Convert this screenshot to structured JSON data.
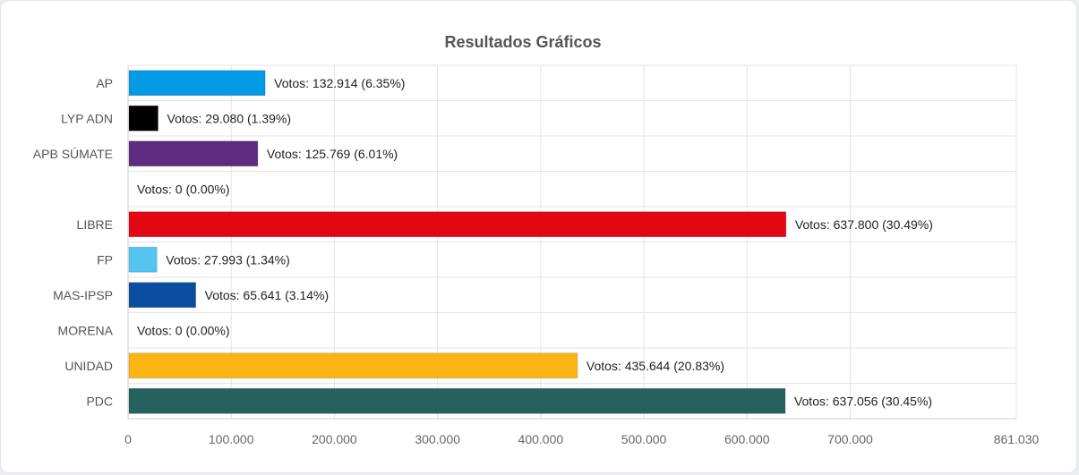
{
  "chart_data": {
    "type": "bar",
    "orientation": "horizontal",
    "title": "Resultados Gráficos",
    "xlim": [
      0,
      861030
    ],
    "x_ticks": [
      {
        "value": 0,
        "label": "0"
      },
      {
        "value": 100000,
        "label": "100.000"
      },
      {
        "value": 200000,
        "label": "200.000"
      },
      {
        "value": 300000,
        "label": "300.000"
      },
      {
        "value": 400000,
        "label": "400.000"
      },
      {
        "value": 500000,
        "label": "500.000"
      },
      {
        "value": 600000,
        "label": "600.000"
      },
      {
        "value": 700000,
        "label": "700.000"
      },
      {
        "value": 861030,
        "label": "861.030"
      }
    ],
    "grid": true,
    "categories": [
      "AP",
      "LYP ADN",
      "APB SÚMATE",
      "",
      "LIBRE",
      "FP",
      "MAS-IPSP",
      "MORENA",
      "UNIDAD",
      "PDC"
    ],
    "values": [
      132914,
      29080,
      125769,
      0,
      637800,
      27993,
      65641,
      0,
      435644,
      637056
    ],
    "data_labels": [
      "Votos: 132.914 (6.35%)",
      "Votos: 29.080 (1.39%)",
      "Votos: 125.769 (6.01%)",
      "Votos: 0 (0.00%)",
      "Votos: 637.800 (30.49%)",
      "Votos: 27.993 (1.34%)",
      "Votos: 65.641 (3.14%)",
      "Votos: 0 (0.00%)",
      "Votos: 435.644 (20.83%)",
      "Votos: 637.056 (30.45%)"
    ],
    "colors": [
      "#039be5",
      "#000000",
      "#5e2b7e",
      "#ffffff",
      "#e30613",
      "#55c4f0",
      "#0a4d9e",
      "#ffffff",
      "#fbb614",
      "#24615f"
    ]
  }
}
